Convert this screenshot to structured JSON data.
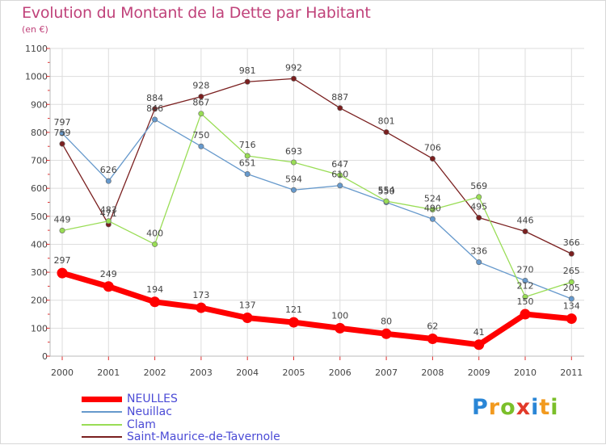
{
  "header": {
    "title": "Evolution du Montant de la Dette par Habitant",
    "unit": "(en €)"
  },
  "logo": {
    "letters": [
      "P",
      "r",
      "o",
      "x",
      "i",
      "t",
      "i"
    ]
  },
  "colors": {
    "title": "#c0427a",
    "grid": "#dddddd",
    "axis_tick_red": "#e03030",
    "legend_text": "#4b4bd6"
  },
  "chart_data": {
    "type": "line",
    "title": "Evolution du Montant de la Dette par Habitant",
    "subtitle": "(en €)",
    "xlabel": "",
    "ylabel": "",
    "x": [
      "2000",
      "2001",
      "2002",
      "2003",
      "2004",
      "2005",
      "2006",
      "2007",
      "2008",
      "2009",
      "2010",
      "2011"
    ],
    "ylim": [
      0,
      1100
    ],
    "yticks": [
      0,
      100,
      200,
      300,
      400,
      500,
      600,
      700,
      800,
      900,
      1000,
      1100
    ],
    "grid": true,
    "legend_position": "bottom-left",
    "series": [
      {
        "name": "NEULLES",
        "color": "#ff0000",
        "values": [
          297,
          249,
          194,
          173,
          137,
          121,
          100,
          80,
          62,
          41,
          150,
          134
        ],
        "labels": [
          "297",
          "249",
          "194",
          "173",
          "137",
          "121",
          "100",
          "80",
          "62",
          "41",
          "150",
          "134"
        ]
      },
      {
        "name": "Neuillac",
        "color": "#6699cc",
        "values": [
          797,
          626,
          846,
          750,
          651,
          594,
          610,
          550,
          490,
          336,
          270,
          205
        ],
        "labels": [
          "797",
          "626",
          "846",
          "750",
          "651",
          "594",
          "610",
          "550",
          "490",
          "336",
          "270",
          "205"
        ]
      },
      {
        "name": "Clam",
        "color": "#99dd55",
        "values": [
          449,
          483,
          400,
          867,
          716,
          693,
          647,
          554,
          524,
          569,
          212,
          265
        ],
        "labels": [
          "449",
          "483",
          "400",
          "867",
          "716",
          "693",
          "647",
          "554",
          "524",
          "569",
          "212",
          "265"
        ]
      },
      {
        "name": "Saint-Maurice-de-Tavernole",
        "color": "#7a1f1f",
        "values": [
          759,
          471,
          884,
          928,
          981,
          992,
          887,
          801,
          706,
          495,
          446,
          366
        ],
        "labels": [
          "759",
          "471",
          "884",
          "928",
          "981",
          "992",
          "887",
          "801",
          "706",
          "495",
          "446",
          "366"
        ]
      }
    ]
  }
}
